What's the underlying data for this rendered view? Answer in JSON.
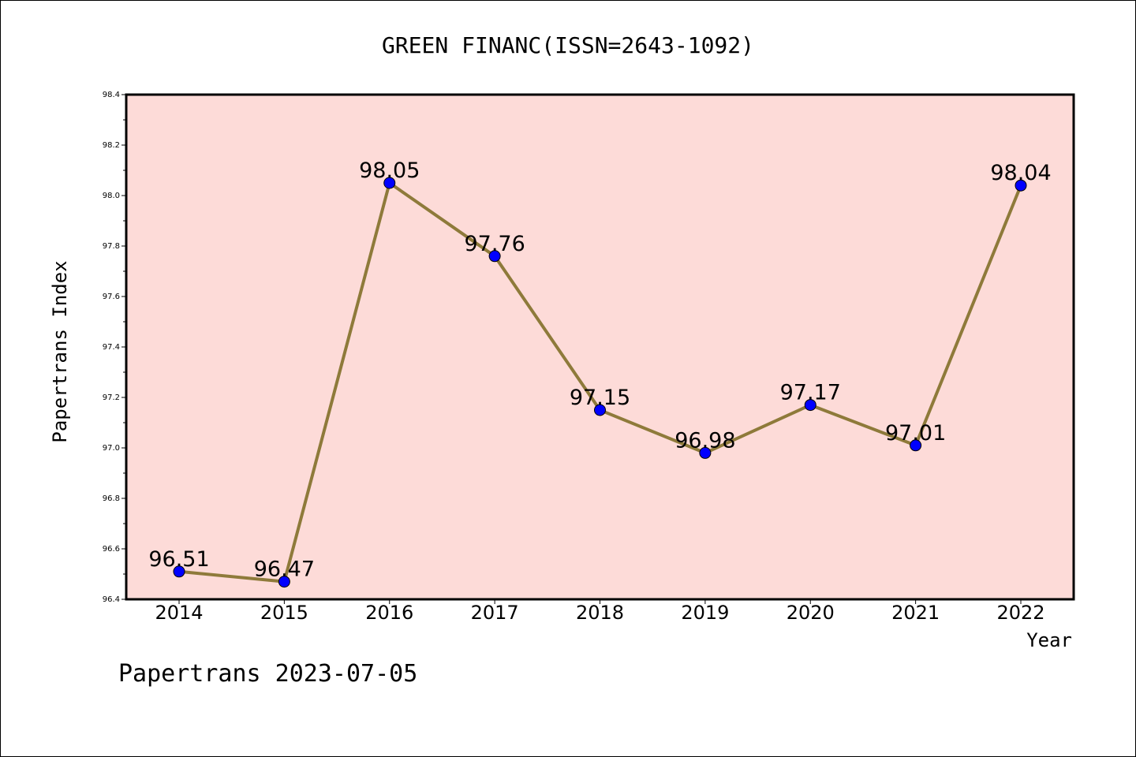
{
  "chart_data": {
    "type": "line",
    "title": "GREEN FINANC(ISSN=2643-1092)",
    "xlabel": "Year",
    "ylabel": "Papertrans Index",
    "categories": [
      "2014",
      "2015",
      "2016",
      "2017",
      "2018",
      "2019",
      "2020",
      "2021",
      "2022"
    ],
    "series": [
      {
        "values": [
          96.51,
          96.47,
          98.05,
          97.76,
          97.15,
          96.98,
          97.17,
          97.01,
          98.04
        ],
        "labels": [
          "96.51",
          "96.47",
          "98.05",
          "97.76",
          "97.15",
          "96.98",
          "97.17",
          "97.01",
          "98.04"
        ]
      }
    ],
    "ylim": [
      96.4,
      98.4
    ],
    "yticks": [
      "96.4",
      "96.6",
      "96.8",
      "97.0",
      "97.2",
      "97.4",
      "97.6",
      "97.8",
      "98.0",
      "98.2",
      "98.4"
    ],
    "grid": false,
    "colors": {
      "plot_background": "#fddbd8",
      "line": "#8e7a3a",
      "marker": "#0000ff"
    }
  },
  "footer": "Papertrans 2023-07-05"
}
